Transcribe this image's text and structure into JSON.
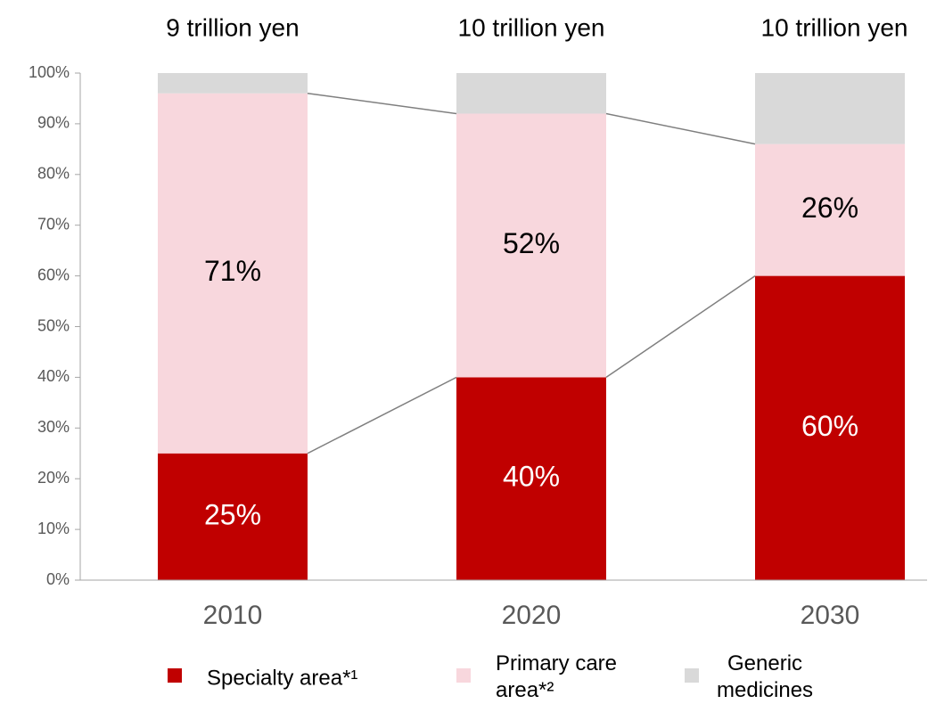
{
  "chart_data": {
    "type": "stacked_bar",
    "totals_labels": [
      "9 trillion yen",
      "10 trillion yen",
      "10 trillion yen"
    ],
    "categories": [
      "2010",
      "2020",
      "2030"
    ],
    "series": [
      {
        "name": "Specialty area*¹",
        "color": "#c00000",
        "label_color": "#ffffff",
        "values": [
          25,
          40,
          60
        ],
        "value_labels": [
          "25%",
          "40%",
          "60%"
        ]
      },
      {
        "name": "Primary care area*²",
        "color": "#f8d7dd",
        "label_color": "#000000",
        "values": [
          71,
          52,
          26
        ],
        "value_labels": [
          "71%",
          "52%",
          "26%"
        ]
      },
      {
        "name": "Generic medicines",
        "color": "#d9d9d9",
        "values": [
          4,
          8,
          14
        ]
      }
    ],
    "ylim": [
      0,
      100
    ],
    "yticks": [
      {
        "value": 0,
        "label": "0%"
      },
      {
        "value": 10,
        "label": "10%"
      },
      {
        "value": 20,
        "label": "20%"
      },
      {
        "value": 30,
        "label": "30%"
      },
      {
        "value": 40,
        "label": "40%"
      },
      {
        "value": 50,
        "label": "50%"
      },
      {
        "value": 60,
        "label": "60%"
      },
      {
        "value": 70,
        "label": "70%"
      },
      {
        "value": 80,
        "label": "80%"
      },
      {
        "value": 90,
        "label": "90%"
      },
      {
        "value": 100,
        "label": "100%"
      }
    ],
    "legend": "bottom"
  }
}
